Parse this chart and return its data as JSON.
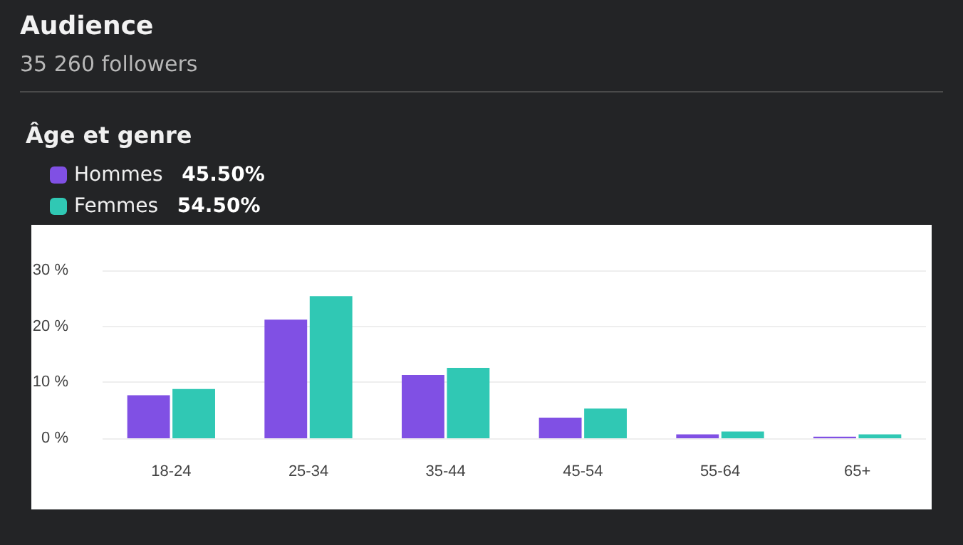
{
  "chart_data": {
    "type": "bar",
    "title": "Audience",
    "subtitle": "35 260 followers",
    "legend_title": "Âge et genre",
    "annotations": [
      "45.50%",
      "54.50%"
    ],
    "categories": [
      "18-24",
      "25-34",
      "35-44",
      "45-54",
      "55-64",
      "65+"
    ],
    "series": [
      {
        "name": "Hommes",
        "color": "#8050e4",
        "values": [
          7.7,
          21.2,
          11.3,
          3.7,
          0.7,
          0.3
        ]
      },
      {
        "name": "Femmes",
        "color": "#30c8b4",
        "values": [
          8.8,
          25.4,
          12.6,
          5.3,
          1.2,
          0.7
        ]
      }
    ],
    "ylim": [
      0,
      30
    ],
    "yticks": [
      {
        "value": 0,
        "label": "0 %"
      },
      {
        "value": 10,
        "label": "10 %"
      },
      {
        "value": 20,
        "label": "20 %"
      },
      {
        "value": 30,
        "label": "30 %"
      }
    ],
    "grid": "y",
    "legend": "top left"
  }
}
